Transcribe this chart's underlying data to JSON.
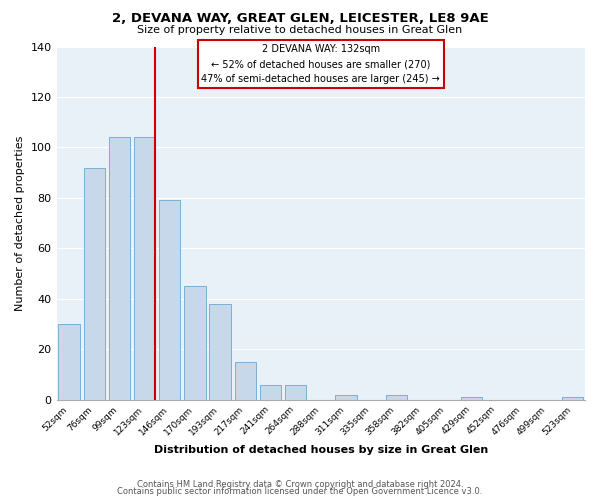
{
  "title": "2, DEVANA WAY, GREAT GLEN, LEICESTER, LE8 9AE",
  "subtitle": "Size of property relative to detached houses in Great Glen",
  "xlabel": "Distribution of detached houses by size in Great Glen",
  "ylabel": "Number of detached properties",
  "bar_color": "#c8d8eb",
  "bar_edge_color": "#7bafd4",
  "background_color": "#e8f0f8",
  "bins": [
    "52sqm",
    "76sqm",
    "99sqm",
    "123sqm",
    "146sqm",
    "170sqm",
    "193sqm",
    "217sqm",
    "241sqm",
    "264sqm",
    "288sqm",
    "311sqm",
    "335sqm",
    "358sqm",
    "382sqm",
    "405sqm",
    "429sqm",
    "452sqm",
    "476sqm",
    "499sqm",
    "523sqm"
  ],
  "values": [
    30,
    92,
    104,
    104,
    79,
    45,
    38,
    15,
    6,
    6,
    0,
    2,
    0,
    2,
    0,
    0,
    1,
    0,
    0,
    0,
    1
  ],
  "vline_after_index": 3,
  "vline_color": "#cc0000",
  "annotation_title": "2 DEVANA WAY: 132sqm",
  "annotation_line1": "← 52% of detached houses are smaller (270)",
  "annotation_line2": "47% of semi-detached houses are larger (245) →",
  "ylim": [
    0,
    140
  ],
  "yticks": [
    0,
    20,
    40,
    60,
    80,
    100,
    120,
    140
  ],
  "footer1": "Contains HM Land Registry data © Crown copyright and database right 2024.",
  "footer2": "Contains public sector information licensed under the Open Government Licence v3.0."
}
